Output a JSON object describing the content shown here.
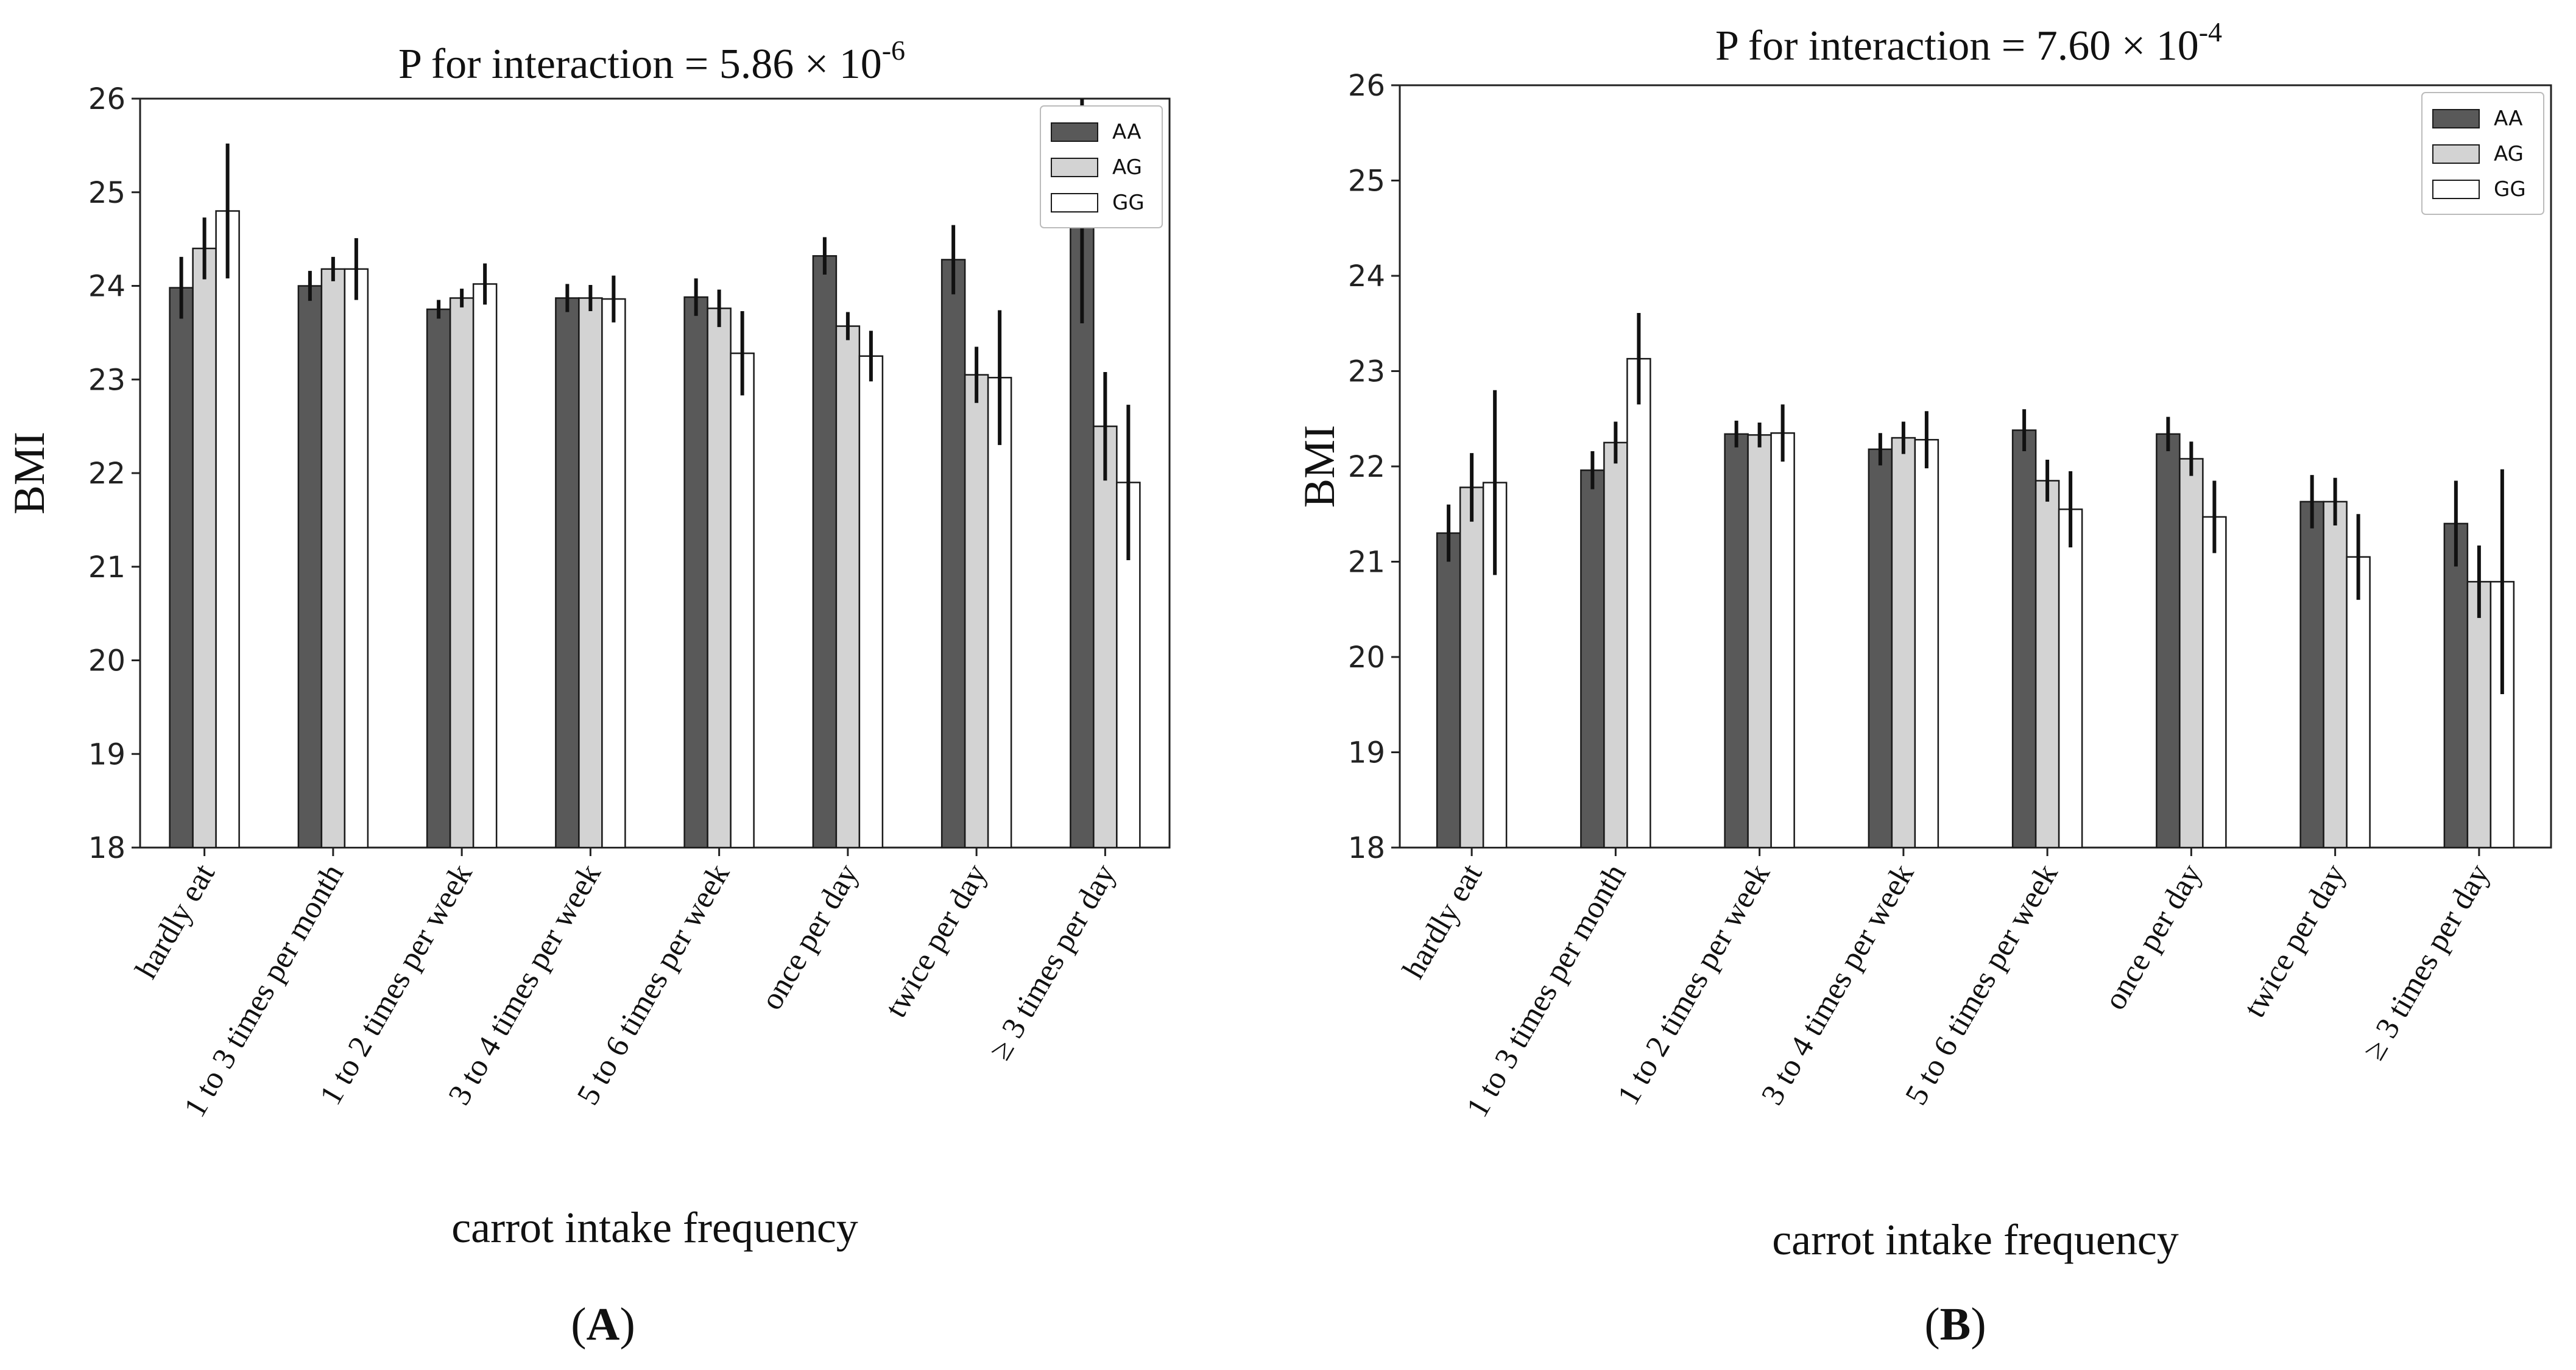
{
  "colors": {
    "AA": "#595959",
    "AG": "#d3d3d3",
    "GG": "#ffffff",
    "edge": "#1a1a1a",
    "errbar": "#111111"
  },
  "chart_data": [
    {
      "type": "bar",
      "panel_label": "(A)",
      "panel_letter": "A",
      "title_text": "P for interaction = 5.86 × 10",
      "title_exp": "-6",
      "xlabel": "carrot intake frequency",
      "ylabel": "BMI",
      "ylim": [
        18,
        26
      ],
      "yticks": [
        "18",
        "19",
        "20",
        "21",
        "22",
        "23",
        "24",
        "25",
        "26"
      ],
      "legend_position": "top-right",
      "grid": false,
      "categories": [
        "hardly eat",
        "1 to 3 times per month",
        "1 to 2 times per week",
        "3 to 4 times per week",
        "5 to 6 times per week",
        "once per day",
        "twice per day",
        "≥ 3 times per day"
      ],
      "series": [
        {
          "name": "AA",
          "values": [
            23.98,
            24.0,
            23.75,
            23.87,
            23.88,
            24.32,
            24.28,
            24.9
          ],
          "err": [
            0.33,
            0.16,
            0.1,
            0.15,
            0.2,
            0.2,
            0.37,
            1.3
          ]
        },
        {
          "name": "AG",
          "values": [
            24.4,
            24.18,
            23.87,
            23.87,
            23.76,
            23.57,
            23.05,
            22.5
          ],
          "err": [
            0.33,
            0.13,
            0.1,
            0.14,
            0.2,
            0.15,
            0.3,
            0.58
          ]
        },
        {
          "name": "GG",
          "values": [
            24.8,
            24.18,
            24.02,
            23.86,
            23.28,
            23.25,
            23.02,
            21.9
          ],
          "err": [
            0.72,
            0.33,
            0.22,
            0.25,
            0.45,
            0.27,
            0.72,
            0.83
          ]
        }
      ]
    },
    {
      "type": "bar",
      "panel_label": "(B)",
      "panel_letter": "B",
      "title_text": "P for interaction = 7.60 × 10",
      "title_exp": "-4",
      "xlabel": "carrot intake frequency",
      "ylabel": "BMI",
      "ylim": [
        18,
        26
      ],
      "yticks": [
        "18",
        "19",
        "20",
        "21",
        "22",
        "23",
        "24",
        "25",
        "26"
      ],
      "legend_position": "top-right",
      "grid": false,
      "categories": [
        "hardly eat",
        "1 to 3 times per month",
        "1 to 2 times per week",
        "3 to 4 times per week",
        "5 to 6 times per week",
        "once per day",
        "twice per day",
        "≥ 3 times per day"
      ],
      "series": [
        {
          "name": "AA",
          "values": [
            21.3,
            21.96,
            22.34,
            22.18,
            22.38,
            22.34,
            21.63,
            21.4
          ],
          "err": [
            0.3,
            0.2,
            0.14,
            0.17,
            0.22,
            0.18,
            0.28,
            0.45
          ]
        },
        {
          "name": "AG",
          "values": [
            21.78,
            22.25,
            22.33,
            22.3,
            21.85,
            22.08,
            21.63,
            20.79
          ],
          "err": [
            0.36,
            0.22,
            0.13,
            0.17,
            0.22,
            0.18,
            0.25,
            0.38
          ]
        },
        {
          "name": "GG",
          "values": [
            21.83,
            23.13,
            22.35,
            22.28,
            21.55,
            21.47,
            21.05,
            20.79
          ],
          "err": [
            0.97,
            0.48,
            0.3,
            0.3,
            0.4,
            0.38,
            0.45,
            1.18
          ]
        }
      ]
    }
  ]
}
